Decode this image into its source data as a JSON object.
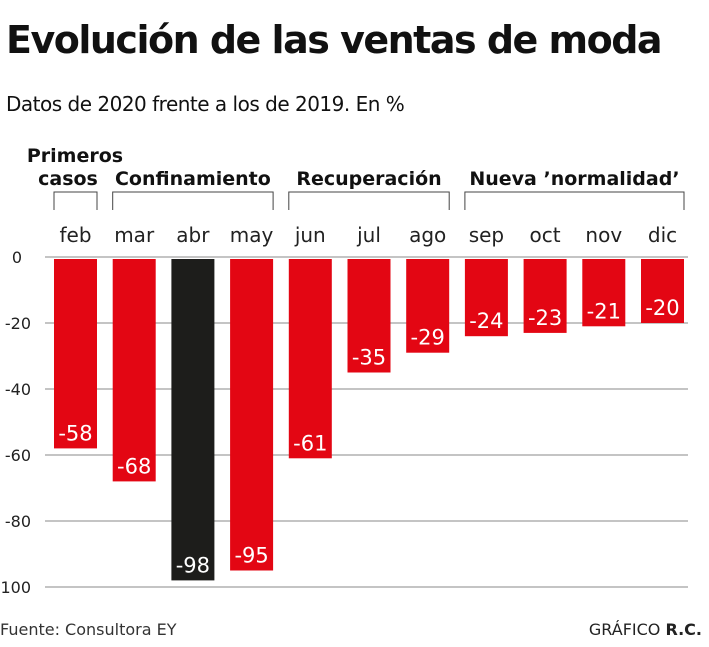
{
  "title": "Evolución  de las ventas de moda",
  "subtitle": "Datos de 2020 frente a los de 2019. En %",
  "source": "Fuente: Consultora EY",
  "credit_prefix": "GRÁFICO",
  "credit_name": "R.C.",
  "colors": {
    "red": "#e30613",
    "black": "#1d1d1b",
    "grid": "#888888"
  },
  "chart_data": {
    "type": "bar",
    "title": "Evolución  de las ventas de moda",
    "subtitle": "Datos de 2020 frente a los de 2019. En %",
    "categories": [
      "feb",
      "mar",
      "abr",
      "may",
      "jun",
      "jul",
      "ago",
      "sep",
      "oct",
      "nov",
      "dic"
    ],
    "values": [
      -58,
      -68,
      -98,
      -95,
      -61,
      -35,
      -29,
      -24,
      -23,
      -21,
      -20
    ],
    "highlight": "abr",
    "ylim": [
      -100,
      0
    ],
    "yticks": [
      0,
      -20,
      -40,
      -60,
      -80,
      -100
    ],
    "grid": true,
    "phases": [
      {
        "label_lines": [
          "Primeros",
          "casos"
        ],
        "from": "feb",
        "to": "feb"
      },
      {
        "label_lines": [
          "Confinamiento"
        ],
        "from": "mar",
        "to": "may"
      },
      {
        "label_lines": [
          "Recuperación"
        ],
        "from": "jun",
        "to": "ago"
      },
      {
        "label_lines": [
          "Nueva ’normalidad’"
        ],
        "from": "sep",
        "to": "dic"
      }
    ]
  }
}
